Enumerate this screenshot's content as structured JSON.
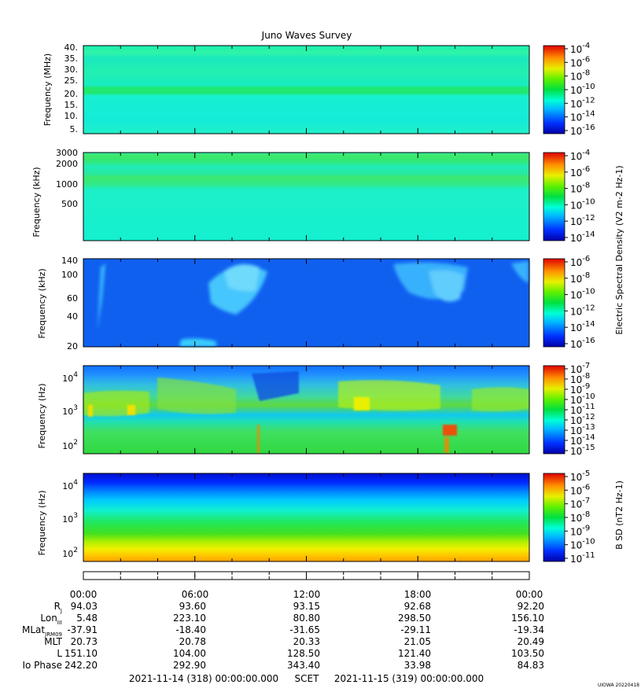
{
  "title": "Juno Waves Survey",
  "credit": "UIOWA 20220418",
  "colorbar_labels": {
    "electric": "Electric Spectral Density (V2 m-2 Hz-1)",
    "magnetic": "B SD (nT2 Hz-1)"
  },
  "time_axis": {
    "ticks": [
      "00:00",
      "06:00",
      "12:00",
      "18:00",
      "00:00"
    ],
    "start_label": "2021-11-14 (318) 00:00:00.000",
    "axis_name": "SCET",
    "end_label": "2021-11-15 (319) 00:00:00.000"
  },
  "ephemeris": {
    "rows": [
      {
        "label": "RJ",
        "values": [
          "94.03",
          "93.60",
          "93.15",
          "92.68",
          "92.20"
        ]
      },
      {
        "label": "LonIII",
        "values": [
          "5.48",
          "223.10",
          "80.80",
          "298.50",
          "156.10"
        ]
      },
      {
        "label": "MLatJRM09",
        "values": [
          "-37.91",
          "-18.40",
          "-31.65",
          "-29.11",
          "-19.34"
        ]
      },
      {
        "label": "MLT",
        "values": [
          "20.73",
          "20.78",
          "20.33",
          "21.05",
          "20.49"
        ]
      },
      {
        "label": "L",
        "values": [
          "151.10",
          "104.00",
          "128.50",
          "121.40",
          "103.50"
        ]
      },
      {
        "label": "Io Phase",
        "values": [
          "242.20",
          "292.90",
          "343.40",
          "33.98",
          "84.83"
        ]
      }
    ]
  },
  "chart_data": [
    {
      "type": "heatmap",
      "ylabel": "Frequency (MHz)",
      "y_ticks": [
        "40.",
        "35.",
        "30.",
        "25.",
        "20.",
        "15.",
        "10.",
        "5."
      ],
      "y_scale": "linear",
      "colorbar_ticks": [
        "10-4",
        "10-6",
        "10-8",
        "10-10",
        "10-12",
        "10-14",
        "10-16"
      ],
      "background": "cyan-green",
      "features": [
        "narrow green band near 21 MHz",
        "faint lighter bands near 35 and 26 MHz"
      ]
    },
    {
      "type": "heatmap",
      "ylabel": "Frequency (kHz)",
      "y_ticks": [
        "3000",
        "2000",
        "1000",
        "500"
      ],
      "y_scale": "log",
      "colorbar_ticks": [
        "10-4",
        "10-6",
        "10-8",
        "10-10",
        "10-12",
        "10-14"
      ],
      "background": "cyan-green",
      "features": [
        "green bands near 2400 kHz and 1200 kHz"
      ]
    },
    {
      "type": "heatmap",
      "ylabel": "Frequency (kHz)",
      "y_ticks": [
        "140",
        "100",
        "60",
        "40",
        "20"
      ],
      "y_scale": "log",
      "colorbar_ticks": [
        "10-6",
        "10-8",
        "10-10",
        "10-12",
        "10-14",
        "10-16"
      ],
      "background": "blue",
      "features": [
        "cyan streaks at 05:00-08:00 and 16:00-20:00"
      ]
    },
    {
      "type": "heatmap",
      "ylabel": "Frequency (Hz)",
      "y_ticks": [
        "104",
        "103",
        "102"
      ],
      "y_scale": "log",
      "colorbar_ticks": [
        "10-7",
        "10-8",
        "10-9",
        "10-10",
        "10-11",
        "10-12",
        "10-13",
        "10-14",
        "10-15"
      ],
      "background": "green-cyan",
      "features": [
        "blue upper region above ~5000 Hz",
        "yellow-green emission near 1000 Hz",
        "red bursts near 200 Hz around 19:00-20:00"
      ]
    },
    {
      "type": "heatmap",
      "ylabel": "Frequency (Hz)",
      "y_ticks": [
        "104",
        "103",
        "102"
      ],
      "y_scale": "log",
      "colorbar_ticks": [
        "10-5",
        "10-6",
        "10-7",
        "10-8",
        "10-9",
        "10-10",
        "10-11"
      ],
      "background": "blue-to-yellow gradient",
      "features": [
        "blue at high frequency grading to yellow/orange below 100 Hz"
      ]
    }
  ]
}
